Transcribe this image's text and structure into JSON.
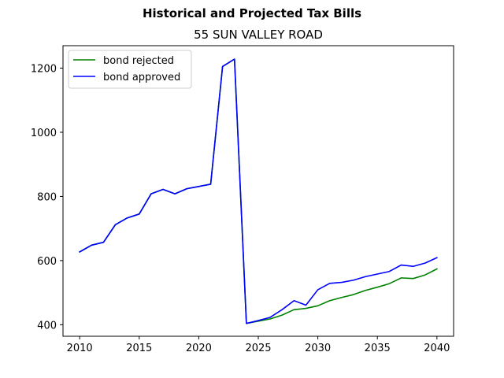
{
  "figure": {
    "suptitle": "Historical and Projected Tax Bills"
  },
  "chart_data": {
    "type": "line",
    "title": "55 SUN VALLEY ROAD",
    "xlabel": "",
    "ylabel": "",
    "xlim": [
      2008.6,
      2041.4
    ],
    "ylim": [
      364,
      1270
    ],
    "xticks": [
      2010,
      2015,
      2020,
      2025,
      2030,
      2035,
      2040
    ],
    "yticks": [
      400,
      600,
      800,
      1000,
      1200
    ],
    "grid": false,
    "legend_position": "upper left",
    "x": [
      2010,
      2011,
      2012,
      2013,
      2014,
      2015,
      2016,
      2017,
      2018,
      2019,
      2020,
      2021,
      2022,
      2023,
      2024,
      2025,
      2026,
      2027,
      2028,
      2029,
      2030,
      2031,
      2032,
      2033,
      2034,
      2035,
      2036,
      2037,
      2038,
      2039,
      2040
    ],
    "series": [
      {
        "name": "bond rejected",
        "color": "#008000",
        "values": [
          627,
          648,
          657,
          712,
          733,
          745,
          808,
          822,
          808,
          824,
          831,
          838,
          1205,
          1228,
          404,
          411,
          418,
          430,
          447,
          451,
          459,
          475,
          485,
          494,
          507,
          517,
          528,
          546,
          544,
          555,
          574
        ]
      },
      {
        "name": "bond approved",
        "color": "#0000ff",
        "values": [
          627,
          648,
          657,
          712,
          733,
          745,
          808,
          822,
          808,
          824,
          831,
          838,
          1205,
          1228,
          404,
          413,
          423,
          447,
          475,
          461,
          509,
          529,
          532,
          539,
          550,
          558,
          566,
          586,
          582,
          592,
          609
        ]
      }
    ]
  }
}
